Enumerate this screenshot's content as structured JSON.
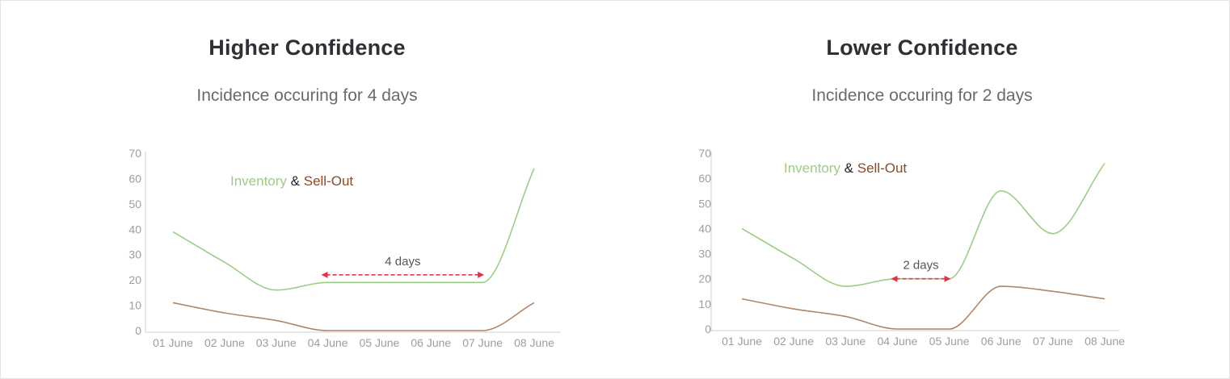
{
  "chart_data": [
    {
      "type": "line",
      "title": "Higher Confidence",
      "subtitle": "Incidence occuring for 4 days",
      "categories": [
        "01 June",
        "02 June",
        "03 June",
        "04 June",
        "05 June",
        "06 June",
        "07 June",
        "08 June"
      ],
      "ylim": [
        0,
        70
      ],
      "yticks": [
        0,
        10,
        20,
        30,
        40,
        50,
        60,
        70
      ],
      "legend": {
        "position": "top-left",
        "first": "Inventory",
        "separator": "&",
        "second": "Sell-Out"
      },
      "series": [
        {
          "name": "Inventory",
          "color": "#9ccd86",
          "values": [
            39,
            27,
            16,
            19,
            19,
            19,
            19,
            64
          ]
        },
        {
          "name": "Sell-Out",
          "color": "#b0866a",
          "values": [
            11,
            7,
            4,
            0,
            0,
            0,
            0,
            11
          ]
        }
      ],
      "annotation": {
        "label": "4 days",
        "from": "04 June",
        "to": "07 June",
        "y": 22,
        "color": "#e0344b"
      }
    },
    {
      "type": "line",
      "title": "Lower Confidence",
      "subtitle": "Incidence occuring for 2 days",
      "categories": [
        "01 June",
        "02 June",
        "03 June",
        "04 June",
        "05 June",
        "06 June",
        "07 June",
        "08 June"
      ],
      "ylim": [
        0,
        70
      ],
      "yticks": [
        0,
        10,
        20,
        30,
        40,
        50,
        60,
        70
      ],
      "legend": {
        "position": "top-left",
        "first": "Inventory",
        "separator": "&",
        "second": "Sell-Out"
      },
      "series": [
        {
          "name": "Inventory",
          "color": "#9ccd86",
          "values": [
            40,
            28,
            17,
            20,
            20,
            55,
            38,
            66
          ]
        },
        {
          "name": "Sell-Out",
          "color": "#b0866a",
          "values": [
            12,
            8,
            5,
            0,
            0,
            17,
            15,
            12
          ]
        }
      ],
      "annotation": {
        "label": "2 days",
        "from": "04 June",
        "to": "05 June",
        "y": 20,
        "color": "#e0344b"
      }
    }
  ]
}
